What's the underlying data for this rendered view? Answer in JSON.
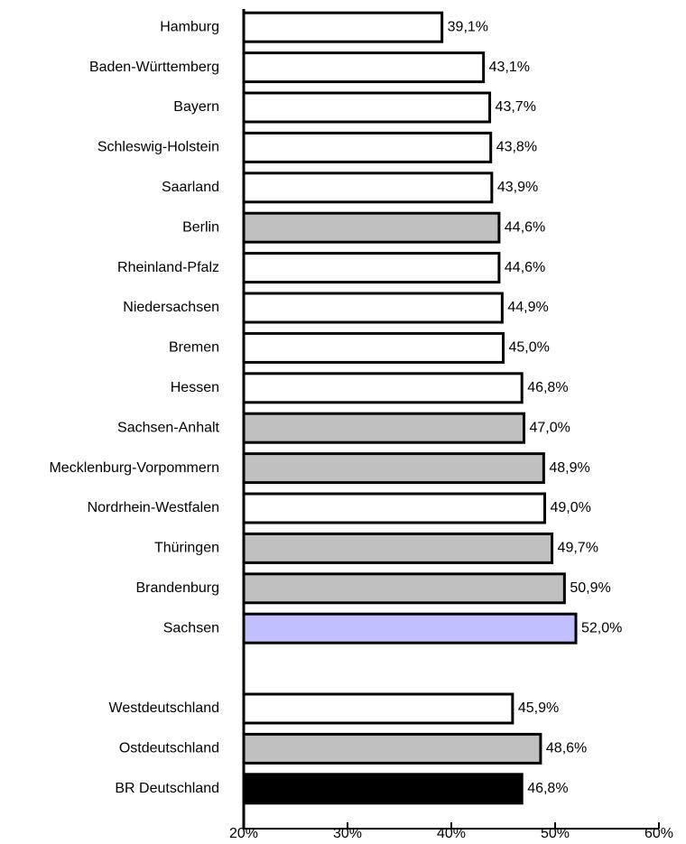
{
  "chart_data": {
    "type": "bar",
    "orientation": "horizontal",
    "categories": [
      "Hamburg",
      "Baden-Württemberg",
      "Bayern",
      "Schleswig-Holstein",
      "Saarland",
      "Berlin",
      "Rheinland-Pfalz",
      "Niedersachsen",
      "Bremen",
      "Hessen",
      "Sachsen-Anhalt",
      "Mecklenburg-Vorpommern",
      "Nordrhein-Westfalen",
      "Thüringen",
      "Brandenburg",
      "Sachsen",
      null,
      "Westdeutschland",
      "Ostdeutschland",
      "BR Deutschland"
    ],
    "values": [
      39.1,
      43.1,
      43.7,
      43.8,
      43.9,
      44.6,
      44.6,
      44.9,
      45.0,
      46.8,
      47.0,
      48.9,
      49.0,
      49.7,
      50.9,
      52.0,
      null,
      45.9,
      48.6,
      46.8
    ],
    "value_labels": [
      "39,1%",
      "43,1%",
      "43,7%",
      "43,8%",
      "43,9%",
      "44,6%",
      "44,6%",
      "44,9%",
      "45,0%",
      "46,8%",
      "47,0%",
      "48,9%",
      "49,0%",
      "49,7%",
      "50,9%",
      "52,0%",
      null,
      "45,9%",
      "48,6%",
      "46,8%"
    ],
    "colors": [
      "#ffffff",
      "#ffffff",
      "#ffffff",
      "#ffffff",
      "#ffffff",
      "#c0c0c0",
      "#ffffff",
      "#ffffff",
      "#ffffff",
      "#ffffff",
      "#c0c0c0",
      "#c0c0c0",
      "#ffffff",
      "#c0c0c0",
      "#c0c0c0",
      "#c0c0ff",
      null,
      "#ffffff",
      "#c0c0c0",
      "#000000"
    ],
    "xlim": [
      20,
      60
    ],
    "xticks": [
      {
        "value": 20,
        "label": "20%"
      },
      {
        "value": 30,
        "label": "30%"
      },
      {
        "value": 40,
        "label": "40%"
      },
      {
        "value": 50,
        "label": "50%"
      },
      {
        "value": 60,
        "label": "60%"
      }
    ],
    "grid": false
  }
}
